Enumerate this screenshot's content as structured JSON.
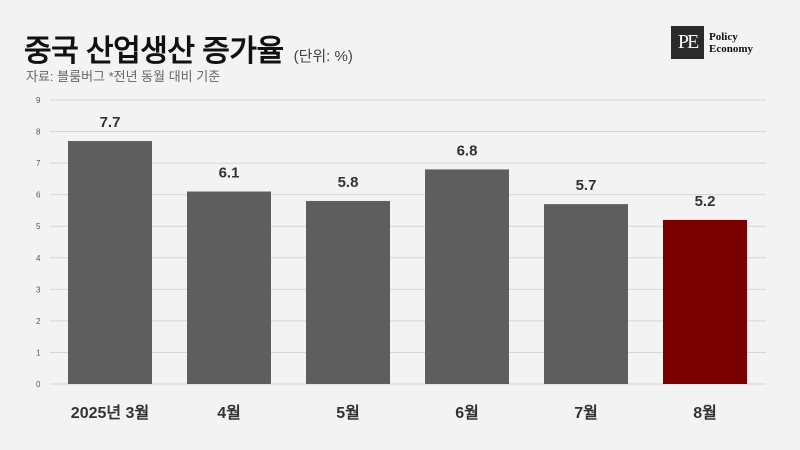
{
  "header": {
    "title": "중국 산업생산 증가율",
    "unit": "(단위: %)",
    "source": "자료: 블룸버그 *전년 동월 대비 기준"
  },
  "logo": {
    "mark": "PE",
    "line1": "Policy",
    "line2": "Economy"
  },
  "chart_data": {
    "type": "bar",
    "categories": [
      "2025년 3월",
      "4월",
      "5월",
      "6월",
      "7월",
      "8월"
    ],
    "values": [
      7.7,
      6.1,
      5.8,
      6.8,
      5.7,
      5.2
    ],
    "value_labels": [
      "7.7",
      "6.1",
      "5.8",
      "6.8",
      "5.7",
      "5.2"
    ],
    "title": "중국 산업생산 증가율",
    "ylim": [
      0,
      9
    ],
    "yticks": [
      0,
      1,
      2,
      3,
      4,
      5,
      6,
      7,
      8,
      9
    ],
    "grid": true,
    "colors": {
      "default": "#5e5e5e",
      "highlight": "#7a0000"
    },
    "highlight_index": 5
  }
}
